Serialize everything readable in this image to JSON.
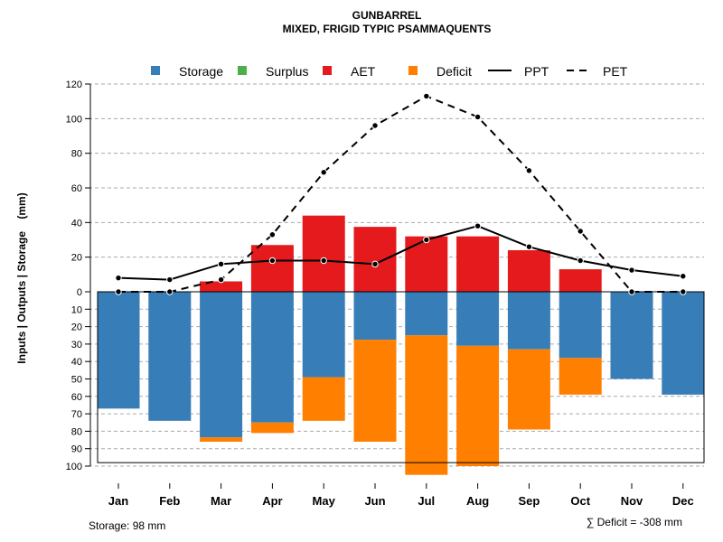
{
  "chart_data": {
    "type": "bar",
    "title": "GUNBARREL",
    "subtitle": "MIXED, FRIGID TYPIC PSAMMAQUENTS",
    "ylabel": "Inputs | Outputs | Storage    (mm)",
    "categories": [
      "Jan",
      "Feb",
      "Mar",
      "Apr",
      "May",
      "Jun",
      "Jul",
      "Aug",
      "Sep",
      "Oct",
      "Nov",
      "Dec"
    ],
    "yticks_top": [
      0,
      20,
      40,
      60,
      80,
      100,
      120
    ],
    "yticks_bottom": [
      10,
      20,
      30,
      40,
      50,
      60,
      70,
      80,
      90,
      100
    ],
    "ylim_top": [
      0,
      120
    ],
    "ylim_bottom": [
      0,
      100
    ],
    "grid": true,
    "legend_position": "top",
    "legend": [
      {
        "name": "Storage",
        "kind": "box",
        "color": "#377EB8"
      },
      {
        "name": "Surplus",
        "kind": "box",
        "color": "#4DAF4A"
      },
      {
        "name": "AET",
        "kind": "box",
        "color": "#E41A1C"
      },
      {
        "name": "Deficit",
        "kind": "box",
        "color": "#FF7F00"
      },
      {
        "name": "PPT",
        "kind": "solid",
        "color": "#000000"
      },
      {
        "name": "PET",
        "kind": "dashed",
        "color": "#000000"
      }
    ],
    "series": [
      {
        "name": "AET",
        "values": [
          0,
          0,
          6,
          27,
          44,
          37.5,
          32,
          32,
          24,
          13,
          0,
          0
        ]
      },
      {
        "name": "Storage",
        "values": [
          67,
          74,
          83.5,
          75,
          49,
          27.5,
          25,
          31,
          33,
          38,
          50,
          59
        ]
      },
      {
        "name": "Deficit",
        "values": [
          0,
          0,
          2.5,
          6,
          25,
          58.5,
          80,
          69,
          46,
          21,
          0,
          0
        ]
      },
      {
        "name": "PPT",
        "values": [
          8,
          7,
          16,
          18,
          18,
          16,
          30,
          38,
          26,
          18,
          12.5,
          9
        ]
      },
      {
        "name": "PET",
        "values": [
          0,
          0,
          7,
          33,
          69,
          96,
          113,
          101,
          70,
          35,
          0,
          0
        ]
      }
    ],
    "storage_capacity": 98,
    "footer_left": "Storage: 98 mm",
    "footer_right": "∑ Deficit = -308 mm"
  }
}
